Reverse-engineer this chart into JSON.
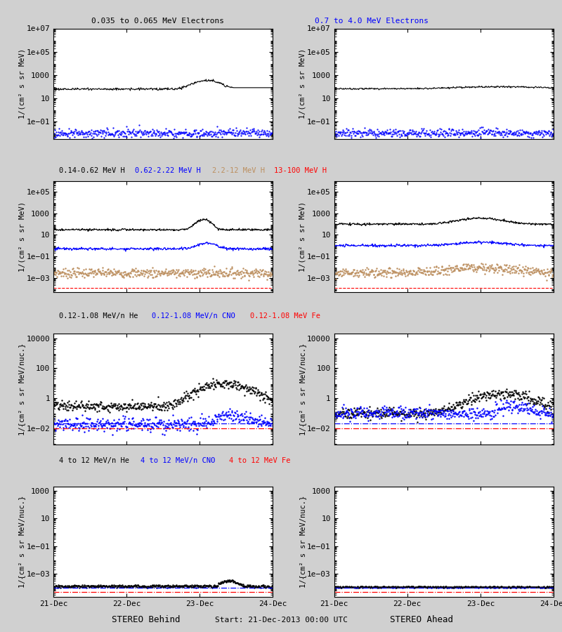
{
  "title_left": "STEREO Behind",
  "title_right": "STEREO Ahead",
  "start_label": "Start: 21-Dec-2013 00:00 UTC",
  "xtick_labels": [
    "21-Dec",
    "22-Dec",
    "23-Dec",
    "24-Dec"
  ],
  "row0_label1": "0.035 to 0.065 MeV Electrons",
  "row0_label2": "0.7 to 4.0 MeV Electrons",
  "row0_colors": [
    "black",
    "blue"
  ],
  "row1_labels": [
    "0.14-0.62 MeV H",
    "0.62-2.22 MeV H",
    "2.2-12 MeV H",
    "13-100 MeV H"
  ],
  "row1_colors": [
    "black",
    "blue",
    "#bc8f5f",
    "red"
  ],
  "row2_labels": [
    "0.12-1.08 MeV/n He",
    "0.12-1.08 MeV/n CNO",
    "0.12-1.08 MeV Fe"
  ],
  "row2_colors": [
    "black",
    "blue",
    "red"
  ],
  "row3_labels": [
    "4 to 12 MeV/n He",
    "4 to 12 MeV/n CNO",
    "4 to 12 MeV Fe"
  ],
  "row3_colors": [
    "black",
    "blue",
    "red"
  ],
  "ylabel_mev": "1/(cm² s sr MeV)",
  "ylabel_nucmev": "1/{cm² s sr MeV/nuc.}",
  "bg_color": "#d0d0d0"
}
